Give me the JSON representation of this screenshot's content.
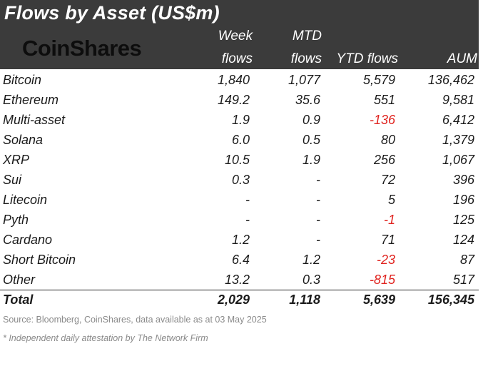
{
  "title": "Flows by Asset (US$m)",
  "logo_text": "CoinShares",
  "colors": {
    "header_bg": "#3b3b3b",
    "negative": "#e0231f",
    "footnote": "#8a8a8a"
  },
  "columns": [
    {
      "line1": "Week",
      "line2": "flows"
    },
    {
      "line1": "MTD",
      "line2": "flows"
    },
    {
      "line1": "",
      "line2": "YTD flows"
    },
    {
      "line1": "",
      "line2": "AUM"
    }
  ],
  "rows": [
    {
      "asset": "Bitcoin",
      "week": "1,840",
      "mtd": "1,077",
      "ytd": "5,579",
      "aum": "136,462"
    },
    {
      "asset": "Ethereum",
      "week": "149.2",
      "mtd": "35.6",
      "ytd": "551",
      "aum": "9,581"
    },
    {
      "asset": "Multi-asset",
      "week": "1.9",
      "mtd": "0.9",
      "ytd": "-136",
      "aum": "6,412"
    },
    {
      "asset": "Solana",
      "week": "6.0",
      "mtd": "0.5",
      "ytd": "80",
      "aum": "1,379"
    },
    {
      "asset": "XRP",
      "week": "10.5",
      "mtd": "1.9",
      "ytd": "256",
      "aum": "1,067"
    },
    {
      "asset": "Sui",
      "week": "0.3",
      "mtd": "-",
      "ytd": "72",
      "aum": "396"
    },
    {
      "asset": "Litecoin",
      "week": "-",
      "mtd": "-",
      "ytd": "5",
      "aum": "196"
    },
    {
      "asset": "Pyth",
      "week": "-",
      "mtd": "-",
      "ytd": "-1",
      "aum": "125"
    },
    {
      "asset": "Cardano",
      "week": "1.2",
      "mtd": "-",
      "ytd": "71",
      "aum": "124"
    },
    {
      "asset": "Short Bitcoin",
      "week": "6.4",
      "mtd": "1.2",
      "ytd": "-23",
      "aum": "87"
    },
    {
      "asset": "Other",
      "week": "13.2",
      "mtd": "0.3",
      "ytd": "-815",
      "aum": "517"
    }
  ],
  "total": {
    "label": "Total",
    "week": "2,029",
    "mtd": "1,118",
    "ytd": "5,639",
    "aum": "156,345"
  },
  "source": "Source: Bloomberg, CoinShares, data available as at 03 May 2025",
  "footnote": "* Independent daily attestation by The Network Firm"
}
